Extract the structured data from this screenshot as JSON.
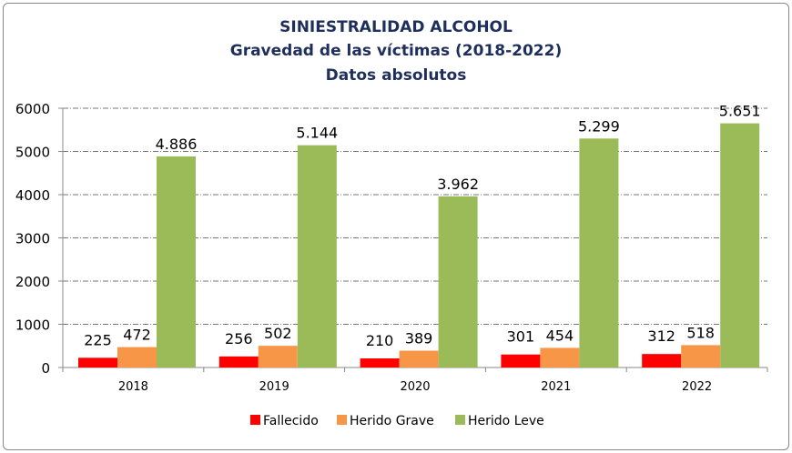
{
  "chart_data": {
    "type": "bar",
    "title": [
      "SINIESTRALIDAD ALCOHOL",
      "Gravedad de las víctimas (2018-2022)",
      "Datos absolutos"
    ],
    "categories": [
      "2018",
      "2019",
      "2020",
      "2021",
      "2022"
    ],
    "series": [
      {
        "name": "Fallecido",
        "color": "#ff0000",
        "values": [
          225,
          256,
          210,
          301,
          312
        ],
        "labels": [
          "225",
          "256",
          "210",
          "301",
          "312"
        ]
      },
      {
        "name": "Herido Grave",
        "color": "#f79646",
        "values": [
          472,
          502,
          389,
          454,
          518
        ],
        "labels": [
          "472",
          "502",
          "389",
          "454",
          "518"
        ]
      },
      {
        "name": "Herido Leve",
        "color": "#9bbb59",
        "values": [
          4886,
          5144,
          3962,
          5299,
          5651
        ],
        "labels": [
          "4.886",
          "5.144",
          "3.962",
          "5.299",
          "5.651"
        ]
      }
    ],
    "ylim": [
      0,
      6000
    ],
    "yticks": [
      "0",
      "1000",
      "2000",
      "3000",
      "4000",
      "5000",
      "6000"
    ],
    "grid": "horizontal dashed",
    "legend": "bottom"
  }
}
